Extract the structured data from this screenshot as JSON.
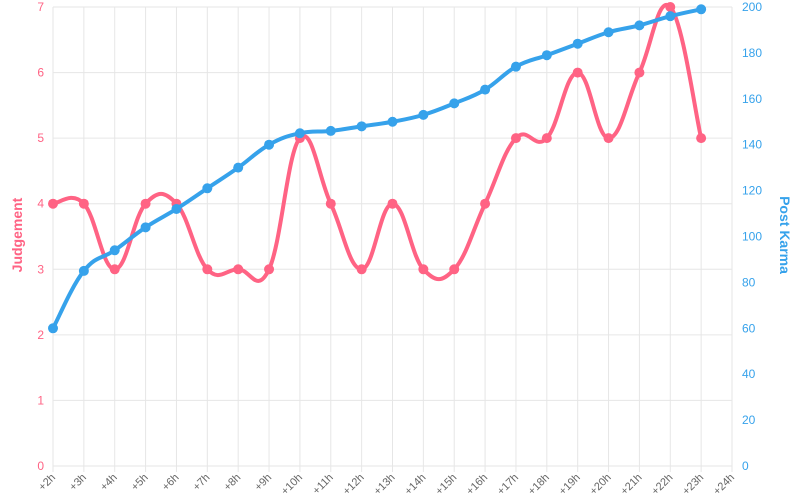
{
  "chart_data": {
    "type": "line",
    "categories": [
      "+2h",
      "+3h",
      "+4h",
      "+5h",
      "+6h",
      "+7h",
      "+8h",
      "+9h",
      "+10h",
      "+11h",
      "+12h",
      "+13h",
      "+14h",
      "+15h",
      "+16h",
      "+17h",
      "+18h",
      "+19h",
      "+20h",
      "+21h",
      "+22h",
      "+23h",
      "+24h"
    ],
    "series": [
      {
        "name": "Judgement",
        "axis": "left",
        "color": "#ff6384",
        "values": [
          4,
          4,
          3,
          4,
          4,
          3,
          3,
          3,
          5,
          4,
          3,
          4,
          3,
          3,
          4,
          5,
          5,
          6,
          5,
          6,
          7,
          5,
          null
        ]
      },
      {
        "name": "Post Karma",
        "axis": "right",
        "color": "#36a2eb",
        "values": [
          60,
          85,
          94,
          104,
          112,
          121,
          130,
          140,
          145,
          146,
          148,
          150,
          153,
          158,
          164,
          174,
          179,
          184,
          189,
          192,
          196,
          199,
          null
        ]
      }
    ],
    "y_left": {
      "label": "Judgement",
      "ylim": [
        0,
        7
      ],
      "ticks": [
        "0",
        "1",
        "2",
        "3",
        "4",
        "5",
        "6",
        "7"
      ]
    },
    "y_right": {
      "label": "Post Karma",
      "ylim": [
        0,
        200
      ],
      "ticks": [
        "0",
        "20",
        "40",
        "60",
        "80",
        "100",
        "120",
        "140",
        "160",
        "180",
        "200"
      ]
    },
    "grid": true,
    "legend": "none"
  }
}
